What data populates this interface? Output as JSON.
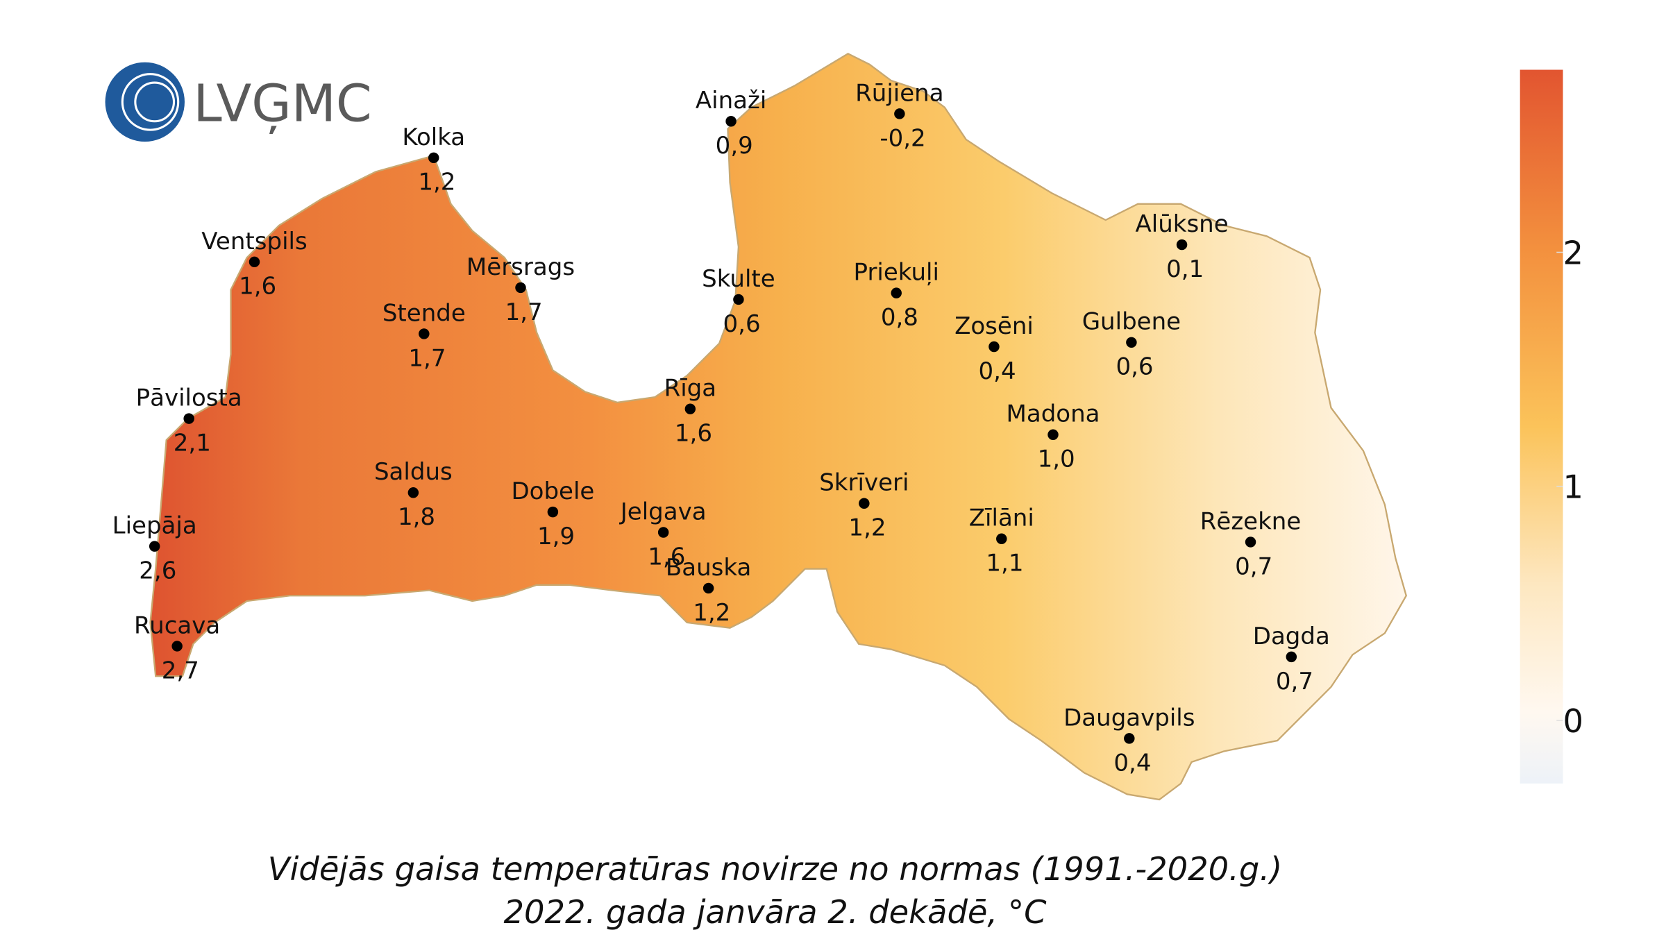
{
  "logo": "LVĢMC",
  "stations": [
    {
      "name": "Ainaži",
      "value": "0,9"
    },
    {
      "name": "Rūjiena",
      "value": "-0,2"
    },
    {
      "name": "Kolka",
      "value": "1,2"
    },
    {
      "name": "Ventspils",
      "value": "1,6"
    },
    {
      "name": "Mērsrags",
      "value": "1,7"
    },
    {
      "name": "Stende",
      "value": "1,7"
    },
    {
      "name": "Skulte",
      "value": "0,6"
    },
    {
      "name": "Priekuļi",
      "value": "0,8"
    },
    {
      "name": "Alūksne",
      "value": "0,1"
    },
    {
      "name": "Zosēni",
      "value": "0,4"
    },
    {
      "name": "Gulbene",
      "value": "0,6"
    },
    {
      "name": "Pāvilosta",
      "value": "2,1"
    },
    {
      "name": "Rīga",
      "value": "1,6"
    },
    {
      "name": "Madona",
      "value": "1,0"
    },
    {
      "name": "Saldus",
      "value": "1,8"
    },
    {
      "name": "Dobele",
      "value": "1,9"
    },
    {
      "name": "Jelgava",
      "value": "1,6"
    },
    {
      "name": "Skrīveri",
      "value": "1,2"
    },
    {
      "name": "Zīlāni",
      "value": "1,1"
    },
    {
      "name": "Rēzekne",
      "value": "0,7"
    },
    {
      "name": "Liepāja",
      "value": "2,6"
    },
    {
      "name": "Bauska",
      "value": "1,2"
    },
    {
      "name": "Rucava",
      "value": "2,7"
    },
    {
      "name": "Dagda",
      "value": "0,7"
    },
    {
      "name": "Daugavpils",
      "value": "0,4"
    }
  ],
  "colorbar": {
    "lim": [
      -0.27,
      2.78
    ],
    "ticks": [
      0,
      1,
      2
    ]
  },
  "caption": [
    "Vidējās gaisa temperatūras novirze no normas (1991.-2020.g.)",
    "2022. gada janvāra 2. dekādē, °C"
  ]
}
